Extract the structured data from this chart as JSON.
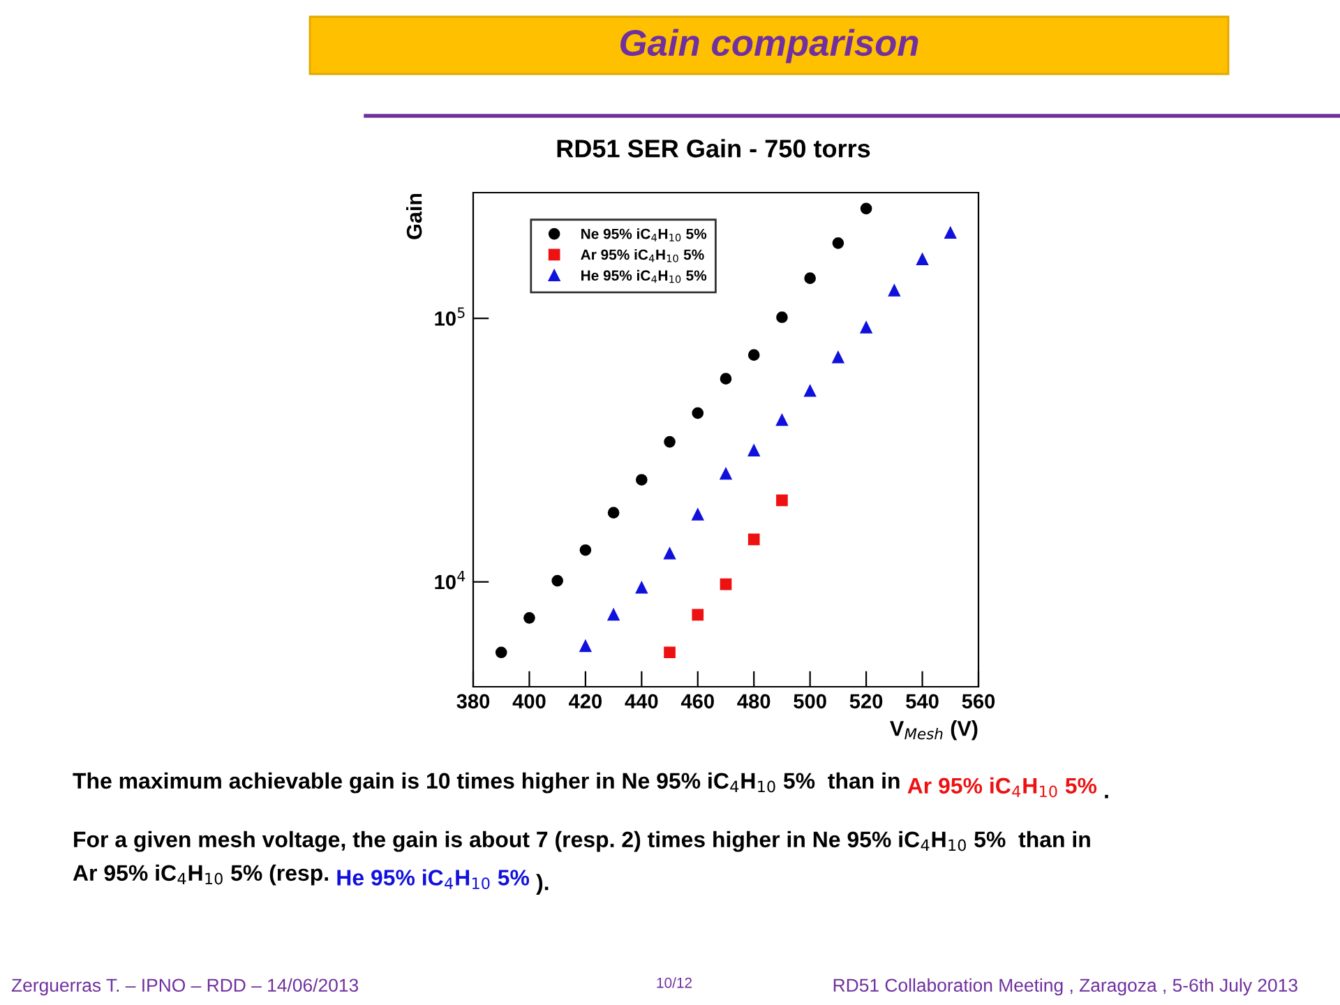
{
  "chart_data": {
    "type": "scatter",
    "title": "Gain comparison",
    "subtitle": "RD51 SER Gain - 750 torrs",
    "xlabel": "V$_{Mesh}$ (V)",
    "ylabel": "Gain",
    "series": [
      {
        "name": "Ne 95% iC$_{4}$H$_{10}$ 5%",
        "color": "#000000",
        "marker": "circle",
        "x": [
          390,
          400,
          410,
          420,
          430,
          440,
          450,
          460,
          470,
          480,
          490,
          500,
          510,
          520
        ],
        "values": [
          5400,
          7300,
          10100,
          13200,
          18300,
          24400,
          34000,
          43700,
          59000,
          72600,
          101000,
          142000,
          193000,
          261000
        ]
      },
      {
        "name": "Ar 95% iC$_{4}$H$_{10}$ 5%",
        "color": "#ee1111",
        "marker": "square",
        "x": [
          450,
          460,
          470,
          480,
          490
        ],
        "values": [
          5400,
          7500,
          9800,
          14500,
          20400
        ]
      },
      {
        "name": "He 95% iC$_{4}$H$_{10}$ 5%",
        "color": "#1111dd",
        "marker": "triangle",
        "x": [
          420,
          430,
          440,
          450,
          460,
          470,
          480,
          490,
          500,
          510,
          520,
          530,
          540,
          550
        ],
        "values": [
          5700,
          7500,
          9500,
          12800,
          18000,
          25700,
          31500,
          41100,
          53000,
          71100,
          92300,
          127500,
          167500,
          211000
        ]
      }
    ],
    "log": "y",
    "xlim": [
      380,
      560
    ],
    "xticks": [
      380,
      400,
      420,
      440,
      460,
      480,
      500,
      520,
      540,
      560
    ],
    "ylim": [
      4000,
      300000
    ],
    "yticks": [
      {
        "value": 10000,
        "label": "10$^{4}$"
      },
      {
        "value": 100000,
        "label": "10$^{5}$"
      }
    ],
    "legend": "top left",
    "grid": false,
    "annotations": [
      "The maximum achievable gain is 10 times higher in Ne 95% iC$_{4}$H$_{10}$ 5%  than in ",
      "Ar 95% iC$_{4}$H$_{10}$ 5%",
      " .",
      "For a given mesh voltage, the gain is about 7 (resp. 2) times higher in Ne 95% iC$_{4}$H$_{10}$ 5%  than in",
      "Ar 95% iC$_{4}$H$_{10}$ 5% (resp. ",
      "He 95% iC$_{4}$H$_{10}$ 5%",
      " ).",
      "Zerguerras T. – IPNO – RDD – 14/06/2013",
      "10/12",
      "RD51 Collaboration Meeting , Zaragoza , 5-6th July 2013"
    ]
  }
}
